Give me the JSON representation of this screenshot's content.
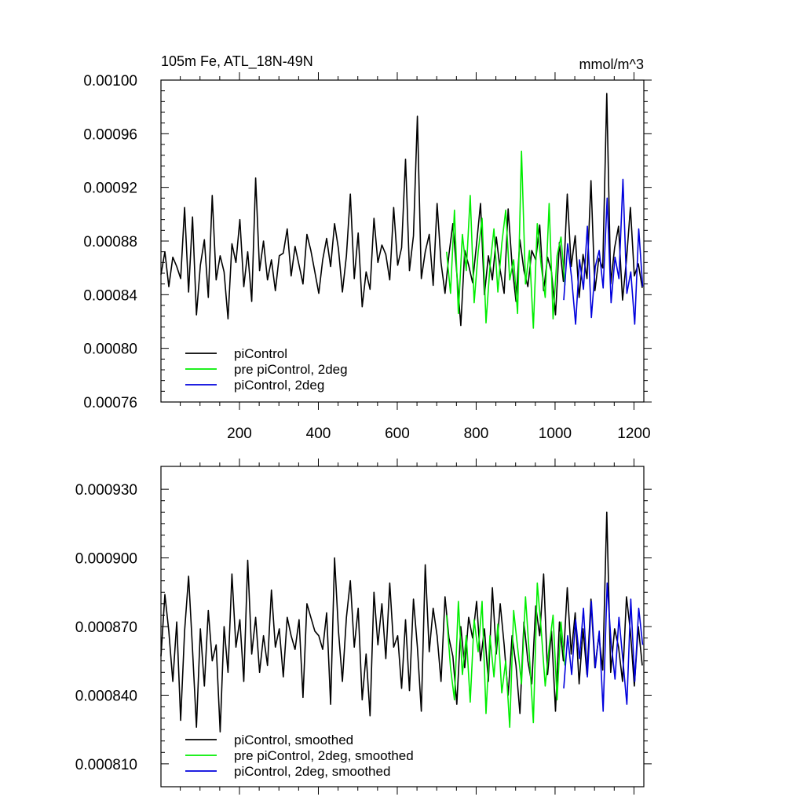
{
  "chart_data": [
    {
      "type": "line",
      "title": "105m Fe, ATL_18N-49N",
      "units": "mmol/m^3",
      "xlim": [
        1,
        1225
      ],
      "ylim": [
        0.00076,
        0.001
      ],
      "x_ticks": [
        200,
        400,
        600,
        800,
        1000,
        1200
      ],
      "x_tick_labels": [
        "200",
        "400",
        "600",
        "800",
        "1000",
        "1200"
      ],
      "y_ticks": [
        0.00076,
        0.0008,
        0.00084,
        0.00088,
        0.00092,
        0.00096,
        0.001
      ],
      "y_tick_labels": [
        "0.00076",
        "0.00080",
        "0.00084",
        "0.00088",
        "0.00092",
        "0.00096",
        "0.00100"
      ],
      "grid": false,
      "legend_position": "bottom-left",
      "series": [
        {
          "name": "piControl",
          "color": "#000000",
          "x_start": 1,
          "x_step": 10,
          "values": [
            0.000855,
            0.000872,
            0.000846,
            0.000868,
            0.000861,
            0.000852,
            0.000905,
            0.000842,
            0.000898,
            0.000825,
            0.000862,
            0.000881,
            0.000838,
            0.000914,
            0.000851,
            0.000869,
            0.000857,
            0.000822,
            0.000878,
            0.000864,
            0.000896,
            0.000846,
            0.000872,
            0.000835,
            0.000927,
            0.000858,
            0.00088,
            0.000851,
            0.000866,
            0.000843,
            0.000869,
            0.000871,
            0.000889,
            0.000854,
            0.000876,
            0.000862,
            0.000848,
            0.000885,
            0.000873,
            0.000857,
            0.000841,
            0.000866,
            0.000882,
            0.000861,
            0.000893,
            0.000874,
            0.000842,
            0.000869,
            0.000915,
            0.000852,
            0.000886,
            0.000831,
            0.000857,
            0.000844,
            0.000897,
            0.000864,
            0.000877,
            0.00087,
            0.000851,
            0.000905,
            0.000862,
            0.000875,
            0.000941,
            0.000858,
            0.000884,
            0.000973,
            0.000852,
            0.000872,
            0.000885,
            0.000847,
            0.000908,
            0.000864,
            0.000841,
            0.00087,
            0.000893,
            0.000856,
            0.000817,
            0.000873,
            0.000862,
            0.000849,
            0.000878,
            0.000908,
            0.00084,
            0.000869,
            0.000851,
            0.000883,
            0.000858,
            0.000841,
            0.000904,
            0.000862,
            0.000835,
            0.000881,
            0.000858,
            0.000846,
            0.000873,
            0.000866,
            0.000892,
            0.000843,
            0.000868,
            0.000857,
            0.000825,
            0.000879,
            0.00085,
            0.000915,
            0.000861,
            0.000884,
            0.000838,
            0.00087,
            0.000852,
            0.000925,
            0.000843,
            0.000867,
            0.00086,
            0.00099,
            0.000848,
            0.000875,
            0.000891,
            0.000836,
            0.000866,
            0.000905,
            0.000854,
            0.000863,
            0.000845
          ]
        },
        {
          "name": "pre piControl, 2deg",
          "color": "#00ee00",
          "x_start": 725,
          "x_step": 10,
          "values": [
            0.000872,
            0.000841,
            0.000903,
            0.000826,
            0.000885,
            0.000858,
            0.000914,
            0.000834,
            0.000872,
            0.000897,
            0.000819,
            0.000861,
            0.000889,
            0.000842,
            0.000878,
            0.000903,
            0.000851,
            0.000866,
            0.000826,
            0.000947,
            0.000848,
            0.000873,
            0.000815,
            0.000893,
            0.000861,
            0.000838,
            0.000908,
            0.000822,
            0.000869,
            0.000883,
            0.000847
          ]
        },
        {
          "name": "piControl, 2deg",
          "color": "#0000dd",
          "x_start": 1022,
          "x_step": 10,
          "values": [
            0.000836,
            0.000878,
            0.000852,
            0.000818,
            0.000866,
            0.000844,
            0.000891,
            0.000823,
            0.000861,
            0.000873,
            0.000845,
            0.000912,
            0.000834,
            0.000868,
            0.000852,
            0.000926,
            0.000841,
            0.000857,
            0.000818,
            0.000889,
            0.000846
          ]
        }
      ]
    },
    {
      "type": "line",
      "title": "",
      "xlim": [
        1,
        1225
      ],
      "ylim": [
        0.0008,
        0.00094
      ],
      "x_ticks": [
        200,
        400,
        600,
        800,
        1000,
        1200
      ],
      "y_ticks": [
        0.00081,
        0.00084,
        0.00087,
        0.0009,
        0.00093
      ],
      "y_tick_labels": [
        "0.000810",
        "0.000840",
        "0.000870",
        "0.000900",
        "0.000930"
      ],
      "grid": false,
      "legend_position": "bottom-left",
      "series": [
        {
          "name": "piControl, smoothed",
          "color": "#000000",
          "x_start": 1,
          "x_step": 10,
          "values": [
            0.000857,
            0.000884,
            0.000868,
            0.000846,
            0.000872,
            0.000829,
            0.000868,
            0.000892,
            0.00086,
            0.000826,
            0.000869,
            0.000844,
            0.000877,
            0.000855,
            0.000862,
            0.000824,
            0.00087,
            0.00085,
            0.000893,
            0.000861,
            0.000873,
            0.000846,
            0.000899,
            0.000858,
            0.000874,
            0.00085,
            0.000866,
            0.000853,
            0.000886,
            0.000861,
            0.000869,
            0.000848,
            0.000874,
            0.000866,
            0.00086,
            0.000873,
            0.000839,
            0.00088,
            0.000874,
            0.000868,
            0.000866,
            0.00086,
            0.000876,
            0.000836,
            0.0009,
            0.000868,
            0.000846,
            0.000874,
            0.00089,
            0.000861,
            0.000878,
            0.000838,
            0.000858,
            0.000831,
            0.000885,
            0.000862,
            0.00088,
            0.000856,
            0.000889,
            0.000861,
            0.000866,
            0.000843,
            0.000873,
            0.000842,
            0.000882,
            0.000861,
            0.000833,
            0.000897,
            0.000859,
            0.000878,
            0.000866,
            0.000846,
            0.000883,
            0.000865,
            0.000857,
            0.000836,
            0.00087,
            0.000852,
            0.000874,
            0.000865,
            0.000881,
            0.000855,
            0.000869,
            0.000846,
            0.000887,
            0.000858,
            0.00088,
            0.000862,
            0.00084,
            0.000866,
            0.000853,
            0.000832,
            0.000872,
            0.000855,
            0.000845,
            0.000879,
            0.000866,
            0.000893,
            0.000849,
            0.000868,
            0.000833,
            0.000872,
            0.000855,
            0.000887,
            0.000858,
            0.000876,
            0.000845,
            0.000869,
            0.000849,
            0.000882,
            0.000852,
            0.000866,
            0.000851,
            0.00092,
            0.00085,
            0.000869,
            0.000861,
            0.000846,
            0.000883,
            0.000868,
            0.000844,
            0.00087,
            0.000853
          ]
        },
        {
          "name": "pre piControl, 2deg, smoothed",
          "color": "#00ee00",
          "x_start": 725,
          "x_step": 10,
          "values": [
            0.000875,
            0.000852,
            0.000838,
            0.000881,
            0.000849,
            0.000866,
            0.000837,
            0.000873,
            0.000859,
            0.000881,
            0.000832,
            0.000866,
            0.000848,
            0.000871,
            0.000841,
            0.000855,
            0.000826,
            0.000877,
            0.000861,
            0.000845,
            0.000883,
            0.000857,
            0.000828,
            0.000889,
            0.000868,
            0.000844,
            0.000861,
            0.000875,
            0.000838,
            0.000872,
            0.000853
          ]
        },
        {
          "name": "piControl, 2deg, smoothed",
          "color": "#0000dd",
          "x_start": 1022,
          "x_step": 10,
          "values": [
            0.000843,
            0.000866,
            0.000849,
            0.000873,
            0.000856,
            0.000878,
            0.000848,
            0.000881,
            0.000852,
            0.000868,
            0.000833,
            0.000889,
            0.000863,
            0.000847,
            0.000874,
            0.000855,
            0.000836,
            0.000882,
            0.000846,
            0.000878,
            0.000862
          ]
        }
      ]
    }
  ]
}
